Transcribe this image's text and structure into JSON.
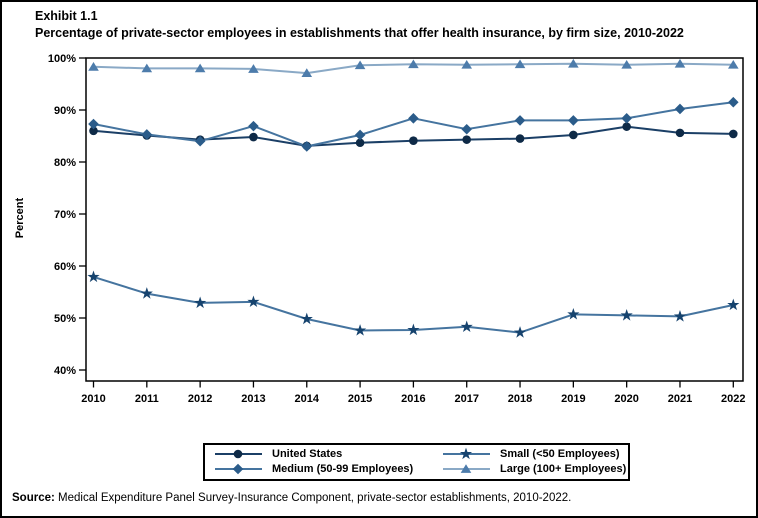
{
  "page": {
    "exhibit_label": "Exhibit 1.1",
    "title": "Percentage of private-sector employees in establishments that offer health insurance, by firm size, 2010-2022",
    "source_label": "Source:",
    "source_text": " Medical Expenditure Panel Survey-Insurance Component, private-sector establishments, 2010-2022."
  },
  "chart_data": {
    "type": "line",
    "title": "Percentage of private-sector employees in establishments that offer health insurance, by firm size, 2010-2022",
    "xlabel": "",
    "ylabel": "Percent",
    "x": [
      2010,
      2011,
      2012,
      2013,
      2014,
      2015,
      2016,
      2017,
      2018,
      2019,
      2020,
      2021,
      2022
    ],
    "ylim": [
      40,
      100
    ],
    "yticks": [
      100,
      90,
      80,
      70,
      60,
      50,
      40
    ],
    "ytick_suffix": "%",
    "grid": false,
    "legend_position": "bottom-box",
    "series": [
      {
        "name": "United States",
        "marker": "circle",
        "line_color": "#1b3f66",
        "marker_color": "#0e2a47",
        "values": [
          86.0,
          85.1,
          84.3,
          84.8,
          83.1,
          83.7,
          84.1,
          84.3,
          84.5,
          85.2,
          86.8,
          85.6,
          85.4
        ]
      },
      {
        "name": "Medium (50-99 Employees)",
        "marker": "diamond",
        "line_color": "#45749f",
        "marker_color": "#2b5c8a",
        "values": [
          87.3,
          85.3,
          84.0,
          86.9,
          83.0,
          85.2,
          88.4,
          86.3,
          88.0,
          88.0,
          88.4,
          90.2,
          91.5
        ]
      },
      {
        "name": "Small (<50 Employees)",
        "marker": "star",
        "line_color": "#45749f",
        "marker_color": "#16436e",
        "values": [
          57.9,
          54.7,
          52.9,
          53.1,
          49.8,
          47.6,
          47.7,
          48.3,
          47.2,
          50.7,
          50.5,
          50.3,
          52.5
        ]
      },
      {
        "name": "Large (100+ Employees)",
        "marker": "triangle",
        "line_color": "#8aa9c6",
        "marker_color": "#4d7cab",
        "values": [
          98.3,
          98.0,
          98.0,
          97.9,
          97.1,
          98.6,
          98.8,
          98.7,
          98.8,
          98.9,
          98.7,
          98.9,
          98.7
        ]
      }
    ]
  }
}
